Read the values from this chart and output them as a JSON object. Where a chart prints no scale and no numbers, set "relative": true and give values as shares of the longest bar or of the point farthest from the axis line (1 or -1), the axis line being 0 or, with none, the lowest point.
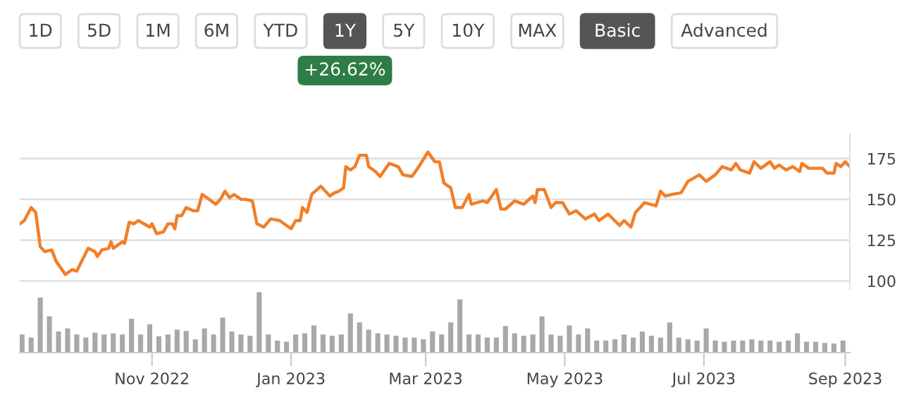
{
  "chart_data": [
    {
      "type": "other",
      "categories": [
        "1D",
        "5D",
        "1M",
        "6M",
        "YTD",
        "1Y",
        "5Y",
        "10Y",
        "MAX",
        "Basic",
        "Advanced"
      ],
      "colors": [
        "#ffffff",
        "#ffffff",
        "#ffffff",
        "#ffffff",
        "#ffffff",
        "#555555",
        "#ffffff",
        "#ffffff",
        "#ffffff",
        "#555555",
        "#ffffff"
      ],
      "annotations": [
        "+26.62%"
      ]
    },
    {
      "type": "line",
      "grid": "y",
      "tick_labels": "y",
      "xlim": [
        "2022-09-04",
        "2023-09-03"
      ],
      "ylim": [
        95,
        190
      ],
      "yticks": [
        100,
        125,
        150,
        175
      ],
      "series": [
        {
          "color": "#f07f2a",
          "x": [
            "2022-09-04",
            "2022-09-06",
            "2022-09-09",
            "2022-09-11",
            "2022-09-13",
            "2022-09-15",
            "2022-09-18",
            "2022-09-20",
            "2022-09-24",
            "2022-09-27",
            "2022-09-29",
            "2022-10-04",
            "2022-10-07",
            "2022-10-08",
            "2022-10-10",
            "2022-10-13",
            "2022-10-14",
            "2022-10-15",
            "2022-10-19",
            "2022-10-20",
            "2022-10-22",
            "2022-10-24",
            "2022-10-26",
            "2022-10-31",
            "2022-11-01",
            "2022-11-03",
            "2022-11-06",
            "2022-11-08",
            "2022-11-10",
            "2022-11-11",
            "2022-11-12",
            "2022-11-14",
            "2022-11-16",
            "2022-11-19",
            "2022-11-21",
            "2022-11-23",
            "2022-11-25",
            "2022-11-29",
            "2022-12-01",
            "2022-12-03",
            "2022-12-05",
            "2022-12-07",
            "2022-12-10",
            "2022-12-12",
            "2022-12-15",
            "2022-12-17",
            "2022-12-20",
            "2022-12-23",
            "2022-12-27",
            "2023-01-01",
            "2023-01-03",
            "2023-01-05",
            "2023-01-06",
            "2023-01-08",
            "2023-01-10",
            "2023-01-14",
            "2023-01-18",
            "2023-01-20",
            "2023-01-22",
            "2023-01-24",
            "2023-01-25",
            "2023-01-27",
            "2023-01-29",
            "2023-01-31",
            "2023-02-03",
            "2023-02-04",
            "2023-02-07",
            "2023-02-09",
            "2023-02-13",
            "2023-02-17",
            "2023-02-19",
            "2023-02-23",
            "2023-02-26",
            "2023-03-02",
            "2023-03-05",
            "2023-03-07",
            "2023-03-09",
            "2023-03-12",
            "2023-03-14",
            "2023-03-17",
            "2023-03-20",
            "2023-03-21",
            "2023-03-26",
            "2023-03-28",
            "2023-04-01",
            "2023-04-03",
            "2023-04-05",
            "2023-04-09",
            "2023-04-13",
            "2023-04-17",
            "2023-04-18",
            "2023-04-19",
            "2023-04-22",
            "2023-04-25",
            "2023-04-27",
            "2023-04-30",
            "2023-05-03",
            "2023-05-06",
            "2023-05-10",
            "2023-05-14",
            "2023-05-16",
            "2023-05-20",
            "2023-05-25",
            "2023-05-27",
            "2023-05-30",
            "2023-06-01",
            "2023-06-05",
            "2023-06-10",
            "2023-06-12",
            "2023-06-14",
            "2023-06-17",
            "2023-06-21",
            "2023-06-24",
            "2023-06-29",
            "2023-07-02",
            "2023-07-06",
            "2023-07-09",
            "2023-07-13",
            "2023-07-15",
            "2023-07-17",
            "2023-07-21",
            "2023-07-23",
            "2023-07-26",
            "2023-07-30",
            "2023-08-01",
            "2023-08-03",
            "2023-08-06",
            "2023-08-09",
            "2023-08-12",
            "2023-08-13",
            "2023-08-16",
            "2023-08-22",
            "2023-08-24",
            "2023-08-27",
            "2023-08-28",
            "2023-08-30",
            "2023-09-01",
            "2023-09-03"
          ],
          "values": [
            135,
            137,
            145,
            142,
            121,
            118,
            119,
            112,
            104,
            107,
            106,
            120,
            118,
            115,
            119,
            120,
            124,
            120,
            124,
            123,
            136,
            135,
            137,
            133,
            135,
            129,
            130,
            135,
            135,
            132,
            140,
            140,
            145,
            143,
            143,
            153,
            151,
            147,
            150,
            155,
            151,
            153,
            150,
            150,
            149,
            135,
            133,
            138,
            137,
            132,
            137,
            137,
            145,
            142,
            153,
            158,
            152,
            154,
            155,
            157,
            170,
            168,
            170,
            177,
            177,
            170,
            167,
            164,
            172,
            170,
            165,
            164,
            170,
            179,
            173,
            173,
            160,
            157,
            145,
            145,
            153,
            147,
            149,
            148,
            156,
            144,
            144,
            149,
            147,
            152,
            148,
            156,
            156,
            145,
            148,
            148,
            141,
            143,
            138,
            141,
            137,
            141,
            134,
            137,
            133,
            142,
            148,
            146,
            155,
            152,
            153,
            154,
            161,
            165,
            161,
            165,
            170,
            168,
            172,
            168,
            166,
            173,
            169,
            173,
            169,
            171,
            168,
            170,
            167,
            172,
            169,
            169,
            166,
            166,
            172,
            170,
            173,
            170
          ]
        }
      ]
    },
    {
      "type": "bar",
      "relative": true,
      "tick_labels": "x",
      "xlim": [
        "2022-09-04",
        "2023-09-03"
      ],
      "xticks": [
        {
          "value": "2022-11-01",
          "label": "Nov 2022"
        },
        {
          "value": "2023-01-01",
          "label": "Jan 2023"
        },
        {
          "value": "2023-03-01",
          "label": "Mar 2023"
        },
        {
          "value": "2023-05-01",
          "label": "May 2023"
        },
        {
          "value": "2023-07-01",
          "label": "Jul 2023"
        },
        {
          "value": "2023-09-01",
          "label": "Sep 2023"
        }
      ],
      "series": [
        {
          "color": "#a8a8a8",
          "x": [
            "2022-09-05",
            "2022-09-09",
            "2022-09-13",
            "2022-09-17",
            "2022-09-21",
            "2022-09-25",
            "2022-09-29",
            "2022-10-03",
            "2022-10-07",
            "2022-10-11",
            "2022-10-15",
            "2022-10-19",
            "2022-10-23",
            "2022-10-27",
            "2022-10-31",
            "2022-11-04",
            "2022-11-08",
            "2022-11-12",
            "2022-11-16",
            "2022-11-20",
            "2022-11-24",
            "2022-11-28",
            "2022-12-02",
            "2022-12-06",
            "2022-12-10",
            "2022-12-14",
            "2022-12-18",
            "2022-12-22",
            "2022-12-26",
            "2022-12-30",
            "2023-01-03",
            "2023-01-07",
            "2023-01-11",
            "2023-01-15",
            "2023-01-19",
            "2023-01-23",
            "2023-01-27",
            "2023-01-31",
            "2023-02-04",
            "2023-02-08",
            "2023-02-12",
            "2023-02-16",
            "2023-02-20",
            "2023-02-24",
            "2023-02-28",
            "2023-03-04",
            "2023-03-08",
            "2023-03-12",
            "2023-03-16",
            "2023-03-20",
            "2023-03-24",
            "2023-03-28",
            "2023-04-01",
            "2023-04-05",
            "2023-04-09",
            "2023-04-13",
            "2023-04-17",
            "2023-04-21",
            "2023-04-25",
            "2023-04-29",
            "2023-05-03",
            "2023-05-07",
            "2023-05-11",
            "2023-05-15",
            "2023-05-19",
            "2023-05-23",
            "2023-05-27",
            "2023-05-31",
            "2023-06-04",
            "2023-06-08",
            "2023-06-12",
            "2023-06-16",
            "2023-06-20",
            "2023-06-24",
            "2023-06-28",
            "2023-07-02",
            "2023-07-06",
            "2023-07-10",
            "2023-07-14",
            "2023-07-18",
            "2023-07-22",
            "2023-07-26",
            "2023-07-30",
            "2023-08-03",
            "2023-08-07",
            "2023-08-11",
            "2023-08-15",
            "2023-08-19",
            "2023-08-23",
            "2023-08-27",
            "2023-08-31"
          ],
          "values": [
            0.3,
            0.25,
            0.91,
            0.6,
            0.35,
            0.4,
            0.3,
            0.25,
            0.33,
            0.3,
            0.32,
            0.3,
            0.56,
            0.3,
            0.47,
            0.27,
            0.3,
            0.38,
            0.36,
            0.22,
            0.4,
            0.3,
            0.58,
            0.35,
            0.3,
            0.28,
            1.0,
            0.3,
            0.2,
            0.18,
            0.3,
            0.32,
            0.45,
            0.3,
            0.28,
            0.3,
            0.65,
            0.5,
            0.38,
            0.32,
            0.3,
            0.28,
            0.25,
            0.25,
            0.22,
            0.35,
            0.3,
            0.5,
            0.88,
            0.3,
            0.3,
            0.25,
            0.25,
            0.44,
            0.32,
            0.28,
            0.3,
            0.6,
            0.3,
            0.28,
            0.45,
            0.3,
            0.4,
            0.2,
            0.2,
            0.22,
            0.3,
            0.25,
            0.35,
            0.28,
            0.25,
            0.5,
            0.25,
            0.22,
            0.2,
            0.4,
            0.2,
            0.18,
            0.2,
            0.2,
            0.22,
            0.2,
            0.2,
            0.18,
            0.2,
            0.32,
            0.18,
            0.18,
            0.16,
            0.15,
            0.2
          ]
        }
      ]
    }
  ]
}
